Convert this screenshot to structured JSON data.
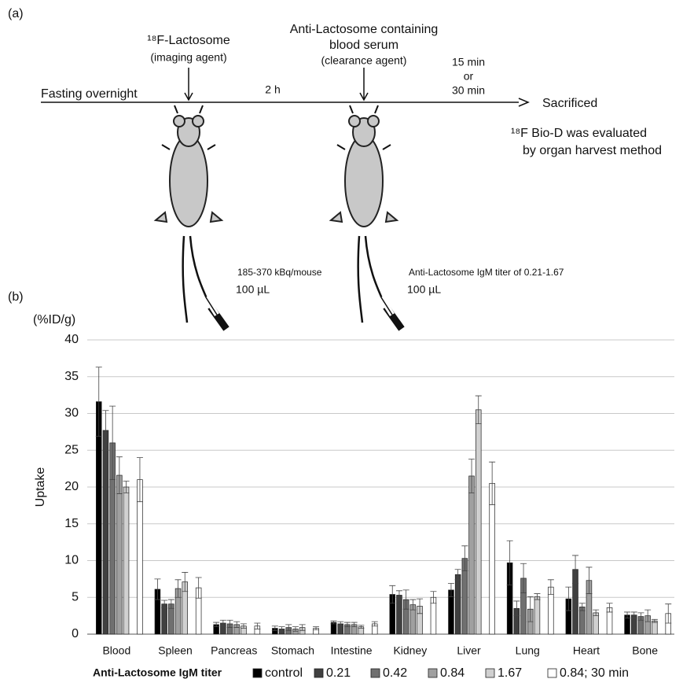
{
  "panel_a": {
    "label": "(a)",
    "imaging_agent": "¹⁸F-Lactosome",
    "imaging_agent_note": "(imaging agent)",
    "clearance_agent_line1": "Anti-Lactosome containing",
    "clearance_agent_line2": "blood serum",
    "clearance_agent_note": "(clearance agent)",
    "interval": "2 h",
    "time_1": "15 min",
    "time_or": "or",
    "time_2": "30 min",
    "start": "Fasting overnight",
    "end": "Sacrificed",
    "evaluation_line1": "¹⁸F Bio-D was evaluated",
    "evaluation_line2": "by organ harvest method",
    "dose_1": "185-370 kBq/mouse",
    "volume_1": "100 µL",
    "dose_2": "Anti-Lactosome IgM titer of 0.21-1.67",
    "volume_2": "100 µL"
  },
  "chart_data": {
    "type": "bar",
    "panel_label": "(b)",
    "y_unit": "(%ID/g)",
    "y_label": "Uptake",
    "legend_title": "Anti-Lactosome IgM titer",
    "categories": [
      "Blood",
      "Spleen",
      "Pancreas",
      "Stomach",
      "Intestine",
      "Kidney",
      "Liver",
      "Lung",
      "Heart",
      "Bone"
    ],
    "series": [
      {
        "name": "control",
        "color": "#000000",
        "values": [
          31.6,
          6.1,
          1.3,
          0.8,
          1.6,
          5.4,
          6.0,
          9.7,
          4.8,
          2.6
        ],
        "errors": [
          4.7,
          1.4,
          0.3,
          0.3,
          0.2,
          1.2,
          0.9,
          3.0,
          1.6,
          0.4
        ]
      },
      {
        "name": "0.21",
        "color": "#404040",
        "values": [
          27.7,
          4.1,
          1.5,
          0.7,
          1.4,
          5.3,
          8.1,
          3.5,
          8.8,
          2.6
        ],
        "errors": [
          2.7,
          0.5,
          0.4,
          0.3,
          0.3,
          0.6,
          0.7,
          1.0,
          1.9,
          0.4
        ]
      },
      {
        "name": "0.42",
        "color": "#707070",
        "values": [
          26.0,
          4.1,
          1.4,
          0.9,
          1.3,
          4.7,
          10.3,
          7.6,
          3.7,
          2.4
        ],
        "errors": [
          5.0,
          0.6,
          0.5,
          0.4,
          0.3,
          1.3,
          1.7,
          2.0,
          0.5,
          0.5
        ]
      },
      {
        "name": "0.84",
        "color": "#a0a0a0",
        "values": [
          21.6,
          6.2,
          1.3,
          0.7,
          1.3,
          4.0,
          21.5,
          3.4,
          7.3,
          2.5
        ],
        "errors": [
          2.5,
          1.2,
          0.4,
          0.3,
          0.3,
          0.7,
          2.3,
          1.7,
          1.8,
          0.8
        ]
      },
      {
        "name": "1.67",
        "color": "#d0d0d0",
        "values": [
          20.0,
          7.1,
          1.1,
          0.9,
          1.0,
          3.8,
          30.5,
          5.1,
          2.9,
          1.8
        ],
        "errors": [
          0.8,
          1.3,
          0.3,
          0.4,
          0.2,
          1.0,
          1.9,
          0.4,
          0.4,
          0.2
        ]
      },
      {
        "name": "0.84; 30 min",
        "color": "#ffffff",
        "values": [
          21.0,
          6.3,
          1.1,
          0.8,
          1.4,
          5.0,
          20.5,
          6.4,
          3.6,
          2.8
        ],
        "errors": [
          3.0,
          1.4,
          0.4,
          0.2,
          0.3,
          0.8,
          2.9,
          1.0,
          0.6,
          1.3
        ]
      }
    ],
    "ylim": [
      0,
      40
    ],
    "yticks": [
      0,
      5,
      10,
      15,
      20,
      25,
      30,
      35,
      40
    ],
    "grid": true
  }
}
